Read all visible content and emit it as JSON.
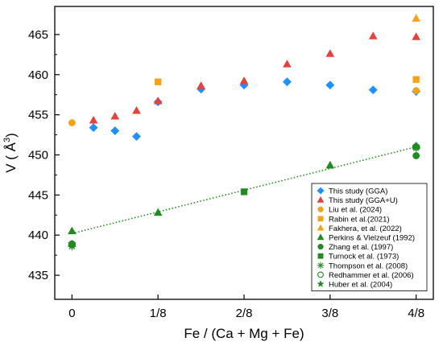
{
  "chart_data": {
    "type": "scatter",
    "xlabel": "Fe / (Ca + Mg + Fe)",
    "ylabel_main": "V ( Å",
    "ylabel_sup": "3",
    "ylabel_close": ")",
    "x_ticks": [
      {
        "value": 0,
        "label": "0"
      },
      {
        "value": 0.125,
        "label": "1/8"
      },
      {
        "value": 0.25,
        "label": "2/8"
      },
      {
        "value": 0.375,
        "label": "3/8"
      },
      {
        "value": 0.5,
        "label": "4/8"
      }
    ],
    "y_ticks": [
      435,
      440,
      445,
      450,
      455,
      460,
      465
    ],
    "xlim": [
      -0.025,
      0.525
    ],
    "ylim": [
      432,
      468.5
    ],
    "grid": false,
    "legend_position": "bottom-right",
    "series": [
      {
        "name": "This study (GGA)",
        "marker": "diamond",
        "filled": true,
        "color": "#1E90FF",
        "x": [
          0.03125,
          0.0625,
          0.09375,
          0.125,
          0.1875,
          0.25,
          0.3125,
          0.375,
          0.4375,
          0.5
        ],
        "y": [
          453.4,
          453.0,
          452.3,
          456.6,
          458.2,
          458.7,
          459.1,
          458.7,
          458.1,
          457.9
        ]
      },
      {
        "name": "This study (GGA+U)",
        "marker": "triangle",
        "filled": true,
        "color": "#E8403C",
        "x": [
          0.03125,
          0.0625,
          0.09375,
          0.125,
          0.1875,
          0.25,
          0.3125,
          0.375,
          0.4375,
          0.5
        ],
        "y": [
          454.3,
          454.8,
          455.5,
          456.7,
          458.6,
          459.2,
          461.3,
          462.6,
          464.8,
          464.7
        ]
      },
      {
        "name": "Liu et al. (2024)",
        "marker": "circle",
        "filled": true,
        "color": "#F5A21A",
        "x": [
          0,
          0.5
        ],
        "y": [
          454.0,
          458.0
        ]
      },
      {
        "name": "Rabin et al.(2021)",
        "marker": "square",
        "filled": true,
        "color": "#F5A21A",
        "x": [
          0.125,
          0.5
        ],
        "y": [
          459.1,
          459.4
        ]
      },
      {
        "name": "Fakhera, et al. (2022)",
        "marker": "triangle",
        "filled": true,
        "color": "#F5A21A",
        "x": [
          0.5
        ],
        "y": [
          467.0
        ]
      },
      {
        "name": "Perkins & Vielzeuf (1992)",
        "marker": "triangle",
        "filled": true,
        "color": "#1E8C1E",
        "x": [
          0,
          0.125,
          0.375,
          0.5
        ],
        "y": [
          440.5,
          442.8,
          448.7,
          451.1
        ]
      },
      {
        "name": "Zhang et al. (1997)",
        "marker": "circle",
        "filled": true,
        "color": "#1E8C1E",
        "x": [
          0,
          0.5
        ],
        "y": [
          438.9,
          449.9
        ]
      },
      {
        "name": "Turnock et al. (1973)",
        "marker": "square",
        "filled": true,
        "color": "#1E8C1E",
        "x": [
          0.25
        ],
        "y": [
          445.4
        ]
      },
      {
        "name": "Thompson et al. (2008)",
        "marker": "asterisk",
        "filled": false,
        "color": "#1E8C1E",
        "x": [
          0,
          0.5
        ],
        "y": [
          438.6,
          450.9
        ]
      },
      {
        "name": "Redhammer et al. (2006)",
        "marker": "circle",
        "filled": false,
        "color": "#1E8C1E",
        "x": [
          0,
          0.5
        ],
        "y": [
          438.8,
          451.0
        ]
      },
      {
        "name": "Huber et al. (2004)",
        "marker": "star",
        "filled": true,
        "color": "#1E8C1E",
        "x": [
          0,
          0.5
        ],
        "y": [
          438.9,
          451.0
        ]
      }
    ],
    "trendline": {
      "style": "dotted",
      "color": "#1E8C1E",
      "x": [
        0,
        0.5
      ],
      "y": [
        440.2,
        451.0
      ]
    }
  }
}
